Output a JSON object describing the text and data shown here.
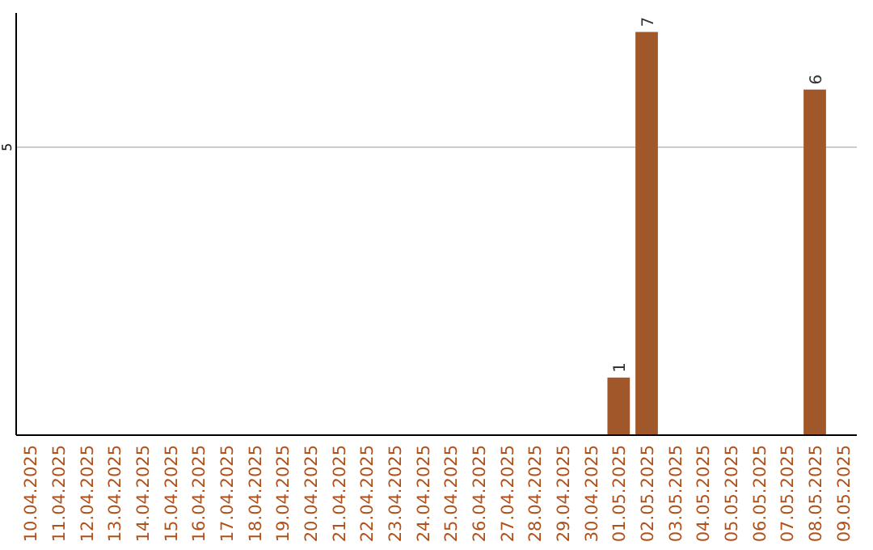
{
  "chart_data": {
    "type": "bar",
    "categories": [
      "10.04.2025",
      "11.04.2025",
      "12.04.2025",
      "13.04.2025",
      "14.04.2025",
      "15.04.2025",
      "16.04.2025",
      "17.04.2025",
      "18.04.2025",
      "19.04.2025",
      "20.04.2025",
      "21.04.2025",
      "22.04.2025",
      "23.04.2025",
      "24.04.2025",
      "25.04.2025",
      "26.04.2025",
      "27.04.2025",
      "28.04.2025",
      "29.04.2025",
      "30.04.2025",
      "01.05.2025",
      "02.05.2025",
      "03.05.2025",
      "04.05.2025",
      "05.05.2025",
      "06.05.2025",
      "07.05.2025",
      "08.05.2025",
      "09.05.2025"
    ],
    "values": [
      null,
      null,
      null,
      null,
      null,
      null,
      null,
      null,
      null,
      null,
      null,
      null,
      null,
      null,
      null,
      null,
      null,
      null,
      null,
      null,
      null,
      1,
      7,
      null,
      null,
      null,
      null,
      null,
      6,
      null
    ],
    "data_labels": true,
    "color": "#a0572a",
    "ylim": [
      0,
      7.33
    ],
    "yticks": [
      5
    ],
    "grid": "y"
  }
}
